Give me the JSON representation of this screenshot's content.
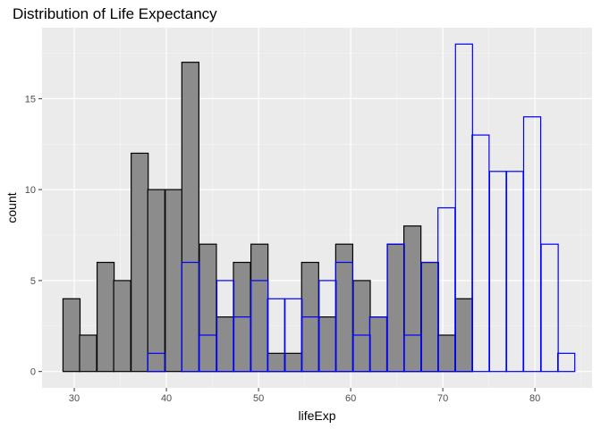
{
  "chart_data": {
    "type": "bar",
    "title": "Distribution of Life Expectancy",
    "xlabel": "lifeExp",
    "ylabel": "count",
    "xlim": [
      26.5,
      86.2
    ],
    "ylim": [
      -0.9,
      18.9
    ],
    "x_ticks": [
      30,
      40,
      50,
      60,
      70,
      80
    ],
    "y_ticks": [
      0,
      5,
      10,
      15
    ],
    "bin_width": 1.85,
    "grid": true,
    "panel_background": "#ebebeb",
    "series": [
      {
        "style": "filled",
        "fill": "#8c8c8c",
        "stroke": "#000000",
        "bins": [
          {
            "x": 29.7,
            "count": 4
          },
          {
            "x": 31.5,
            "count": 2
          },
          {
            "x": 33.4,
            "count": 6
          },
          {
            "x": 35.2,
            "count": 5
          },
          {
            "x": 37.1,
            "count": 12
          },
          {
            "x": 38.9,
            "count": 10
          },
          {
            "x": 40.8,
            "count": 10
          },
          {
            "x": 42.6,
            "count": 17
          },
          {
            "x": 44.5,
            "count": 7
          },
          {
            "x": 46.4,
            "count": 3
          },
          {
            "x": 48.2,
            "count": 6
          },
          {
            "x": 50.1,
            "count": 7
          },
          {
            "x": 51.9,
            "count": 1
          },
          {
            "x": 53.8,
            "count": 1
          },
          {
            "x": 55.6,
            "count": 6
          },
          {
            "x": 57.5,
            "count": 3
          },
          {
            "x": 59.3,
            "count": 7
          },
          {
            "x": 61.2,
            "count": 5
          },
          {
            "x": 63.0,
            "count": 3
          },
          {
            "x": 64.9,
            "count": 7
          },
          {
            "x": 66.7,
            "count": 8
          },
          {
            "x": 68.6,
            "count": 6
          },
          {
            "x": 70.4,
            "count": 2
          },
          {
            "x": 72.3,
            "count": 4
          },
          {
            "x": 74.1,
            "count": 0
          },
          {
            "x": 76.0,
            "count": 0
          },
          {
            "x": 77.8,
            "count": 0
          },
          {
            "x": 79.7,
            "count": 0
          },
          {
            "x": 81.6,
            "count": 0
          },
          {
            "x": 83.4,
            "count": 0
          }
        ]
      },
      {
        "style": "outline",
        "fill": "none",
        "stroke": "#0000ff",
        "bins": [
          {
            "x": 29.7,
            "count": 0
          },
          {
            "x": 31.5,
            "count": 0
          },
          {
            "x": 33.4,
            "count": 0
          },
          {
            "x": 35.2,
            "count": 0
          },
          {
            "x": 37.1,
            "count": 0
          },
          {
            "x": 38.9,
            "count": 1
          },
          {
            "x": 40.8,
            "count": 0
          },
          {
            "x": 42.6,
            "count": 6
          },
          {
            "x": 44.5,
            "count": 2
          },
          {
            "x": 46.4,
            "count": 5
          },
          {
            "x": 48.2,
            "count": 3
          },
          {
            "x": 50.1,
            "count": 5
          },
          {
            "x": 51.9,
            "count": 4
          },
          {
            "x": 53.8,
            "count": 4
          },
          {
            "x": 55.6,
            "count": 3
          },
          {
            "x": 57.5,
            "count": 5
          },
          {
            "x": 59.3,
            "count": 6
          },
          {
            "x": 61.2,
            "count": 2
          },
          {
            "x": 63.0,
            "count": 3
          },
          {
            "x": 64.9,
            "count": 7
          },
          {
            "x": 66.7,
            "count": 2
          },
          {
            "x": 68.6,
            "count": 6
          },
          {
            "x": 70.4,
            "count": 9
          },
          {
            "x": 72.3,
            "count": 18
          },
          {
            "x": 74.1,
            "count": 13
          },
          {
            "x": 76.0,
            "count": 11
          },
          {
            "x": 77.8,
            "count": 11
          },
          {
            "x": 79.7,
            "count": 14
          },
          {
            "x": 81.6,
            "count": 7
          },
          {
            "x": 83.4,
            "count": 1
          }
        ]
      }
    ]
  }
}
